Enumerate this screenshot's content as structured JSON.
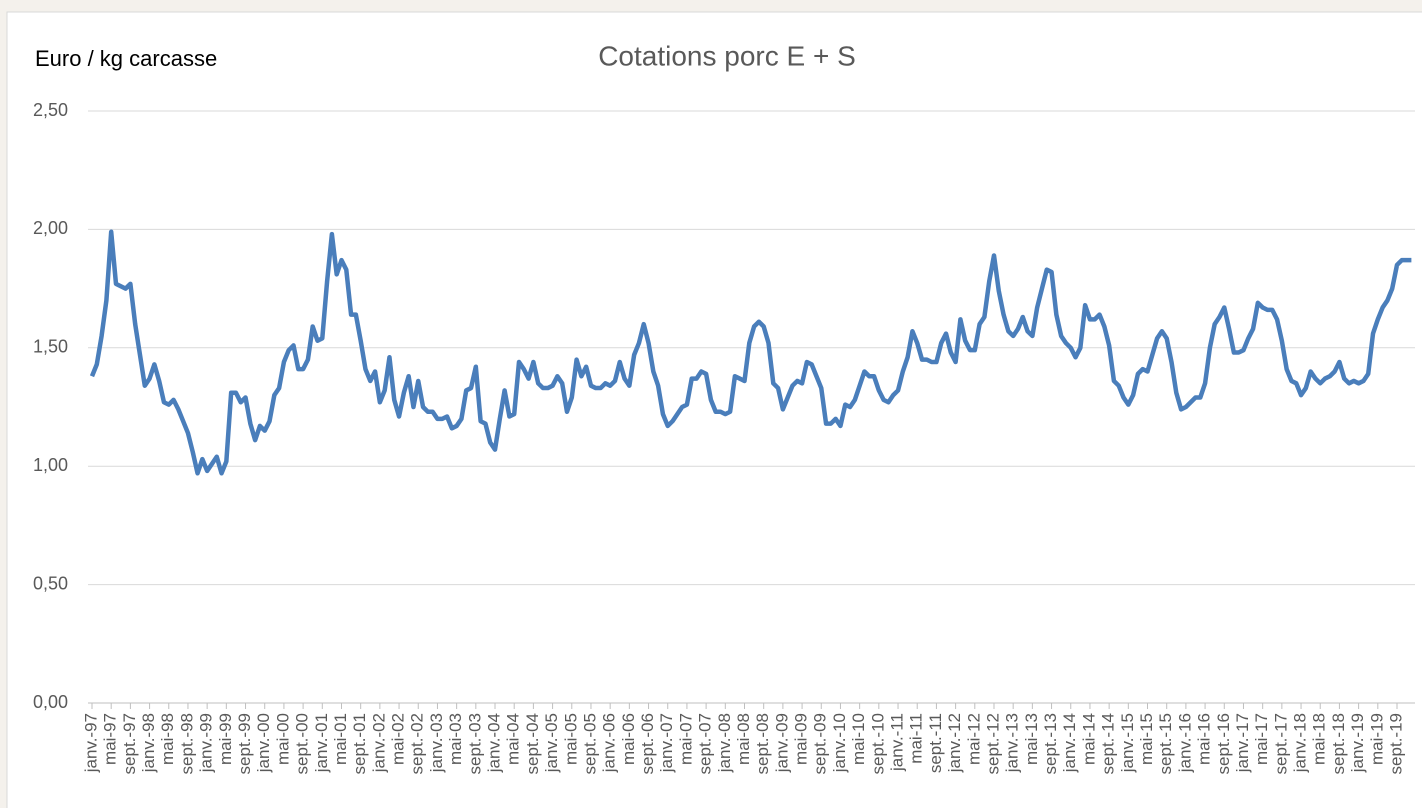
{
  "chart_data": {
    "type": "line",
    "title": "Cotations porc E + S",
    "y_label": "Euro / kg carcasse",
    "categories": [
      "janv.-97",
      null,
      null,
      null,
      "mai-97",
      null,
      null,
      null,
      "sept.-97",
      null,
      null,
      null,
      "janv.-98",
      null,
      null,
      null,
      "mai-98",
      null,
      null,
      null,
      "sept.-98",
      null,
      null,
      null,
      "janv.-99",
      null,
      null,
      null,
      "mai-99",
      null,
      null,
      null,
      "sept.-99",
      null,
      null,
      null,
      "janv.-00",
      null,
      null,
      null,
      "mai-00",
      null,
      null,
      null,
      "sept.-00",
      null,
      null,
      null,
      "janv.-01",
      null,
      null,
      null,
      "mai-01",
      null,
      null,
      null,
      "sept.-01",
      null,
      null,
      null,
      "janv.-02",
      null,
      null,
      null,
      "mai-02",
      null,
      null,
      null,
      "sept.-02",
      null,
      null,
      null,
      "janv.-03",
      null,
      null,
      null,
      "mai-03",
      null,
      null,
      null,
      "sept.-03",
      null,
      null,
      null,
      "janv.-04",
      null,
      null,
      null,
      "mai-04",
      null,
      null,
      null,
      "sept.-04",
      null,
      null,
      null,
      "janv.-05",
      null,
      null,
      null,
      "mai-05",
      null,
      null,
      null,
      "sept.-05",
      null,
      null,
      null,
      "janv.-06",
      null,
      null,
      null,
      "mai-06",
      null,
      null,
      null,
      "sept.-06",
      null,
      null,
      null,
      "janv.-07",
      null,
      null,
      null,
      "mai-07",
      null,
      null,
      null,
      "sept.-07",
      null,
      null,
      null,
      "janv.-08",
      null,
      null,
      null,
      "mai-08",
      null,
      null,
      null,
      "sept.-08",
      null,
      null,
      null,
      "janv.-09",
      null,
      null,
      null,
      "mai-09",
      null,
      null,
      null,
      "sept.-09",
      null,
      null,
      null,
      "janv.-10",
      null,
      null,
      null,
      "mai-10",
      null,
      null,
      null,
      "sept.-10",
      null,
      null,
      null,
      "janv.-11",
      null,
      null,
      null,
      "mai-11",
      null,
      null,
      null,
      "sept.-11",
      null,
      null,
      null,
      "janv.-12",
      null,
      null,
      null,
      "mai-12",
      null,
      null,
      null,
      "sept.-12",
      null,
      null,
      null,
      "janv.-13",
      null,
      null,
      null,
      "mai-13",
      null,
      null,
      null,
      "sept.-13",
      null,
      null,
      null,
      "janv.-14",
      null,
      null,
      null,
      "mai-14",
      null,
      null,
      null,
      "sept.-14",
      null,
      null,
      null,
      "janv.-15",
      null,
      null,
      null,
      "mai-15",
      null,
      null,
      null,
      "sept.-15",
      null,
      null,
      null,
      "janv.-16",
      null,
      null,
      null,
      "mai-16",
      null,
      null,
      null,
      "sept.-16",
      null,
      null,
      null,
      "janv.-17",
      null,
      null,
      null,
      "mai-17",
      null,
      null,
      null,
      "sept.-17",
      null,
      null,
      null,
      "janv.-18",
      null,
      null,
      null,
      "mai-18",
      null,
      null,
      null,
      "sept.-18",
      null,
      null,
      null,
      "janv.-19",
      null,
      null,
      null,
      "mai-19",
      null,
      null,
      null,
      "sept.-19",
      null,
      null,
      null
    ],
    "series": [
      {
        "name": "Cotations porc E + S",
        "color": "#4a7ebb",
        "values": [
          1.38,
          1.43,
          1.55,
          1.7,
          1.99,
          1.77,
          1.76,
          1.75,
          1.77,
          1.6,
          1.47,
          1.34,
          1.37,
          1.43,
          1.36,
          1.27,
          1.26,
          1.28,
          1.24,
          1.19,
          1.14,
          1.06,
          0.97,
          1.03,
          0.98,
          1.01,
          1.04,
          0.97,
          1.02,
          1.31,
          1.31,
          1.27,
          1.29,
          1.18,
          1.11,
          1.17,
          1.15,
          1.19,
          1.3,
          1.33,
          1.44,
          1.49,
          1.51,
          1.41,
          1.41,
          1.45,
          1.59,
          1.53,
          1.54,
          1.78,
          1.98,
          1.81,
          1.87,
          1.83,
          1.64,
          1.64,
          1.53,
          1.41,
          1.36,
          1.4,
          1.27,
          1.32,
          1.46,
          1.28,
          1.21,
          1.31,
          1.38,
          1.25,
          1.36,
          1.25,
          1.23,
          1.23,
          1.2,
          1.2,
          1.21,
          1.16,
          1.17,
          1.2,
          1.32,
          1.33,
          1.42,
          1.19,
          1.18,
          1.1,
          1.07,
          1.2,
          1.32,
          1.21,
          1.22,
          1.44,
          1.41,
          1.37,
          1.44,
          1.35,
          1.33,
          1.33,
          1.34,
          1.38,
          1.35,
          1.23,
          1.29,
          1.45,
          1.38,
          1.42,
          1.34,
          1.33,
          1.33,
          1.35,
          1.34,
          1.36,
          1.44,
          1.37,
          1.34,
          1.47,
          1.52,
          1.6,
          1.52,
          1.4,
          1.34,
          1.22,
          1.17,
          1.19,
          1.22,
          1.25,
          1.26,
          1.37,
          1.37,
          1.4,
          1.39,
          1.28,
          1.23,
          1.23,
          1.22,
          1.23,
          1.38,
          1.37,
          1.36,
          1.52,
          1.59,
          1.61,
          1.59,
          1.52,
          1.35,
          1.33,
          1.24,
          1.29,
          1.34,
          1.36,
          1.35,
          1.44,
          1.43,
          1.38,
          1.33,
          1.18,
          1.18,
          1.2,
          1.17,
          1.26,
          1.25,
          1.28,
          1.34,
          1.4,
          1.38,
          1.38,
          1.32,
          1.28,
          1.27,
          1.3,
          1.32,
          1.4,
          1.46,
          1.57,
          1.52,
          1.45,
          1.45,
          1.44,
          1.44,
          1.52,
          1.56,
          1.48,
          1.44,
          1.62,
          1.53,
          1.49,
          1.49,
          1.6,
          1.63,
          1.78,
          1.89,
          1.74,
          1.64,
          1.57,
          1.55,
          1.58,
          1.63,
          1.57,
          1.55,
          1.67,
          1.75,
          1.83,
          1.82,
          1.64,
          1.55,
          1.52,
          1.5,
          1.46,
          1.5,
          1.68,
          1.62,
          1.62,
          1.64,
          1.59,
          1.51,
          1.36,
          1.34,
          1.29,
          1.26,
          1.3,
          1.39,
          1.41,
          1.4,
          1.47,
          1.54,
          1.57,
          1.54,
          1.44,
          1.31,
          1.24,
          1.25,
          1.27,
          1.29,
          1.29,
          1.35,
          1.5,
          1.6,
          1.63,
          1.67,
          1.58,
          1.48,
          1.48,
          1.49,
          1.54,
          1.58,
          1.69,
          1.67,
          1.66,
          1.66,
          1.62,
          1.53,
          1.41,
          1.36,
          1.35,
          1.3,
          1.33,
          1.4,
          1.37,
          1.35,
          1.37,
          1.38,
          1.4,
          1.44,
          1.37,
          1.35,
          1.36,
          1.35,
          1.36,
          1.39,
          1.56,
          1.62,
          1.67,
          1.7,
          1.75,
          1.85,
          1.87,
          1.87,
          1.87
        ]
      }
    ],
    "ylim": [
      0,
      2.5
    ],
    "yticks": [
      {
        "value": 0,
        "label": "0,00"
      },
      {
        "value": 0.5,
        "label": "0,50"
      },
      {
        "value": 1,
        "label": "1,00"
      },
      {
        "value": 1.5,
        "label": "1,50"
      },
      {
        "value": 2,
        "label": "2,00"
      },
      {
        "value": 2.5,
        "label": "2,50"
      }
    ],
    "grid": true
  }
}
